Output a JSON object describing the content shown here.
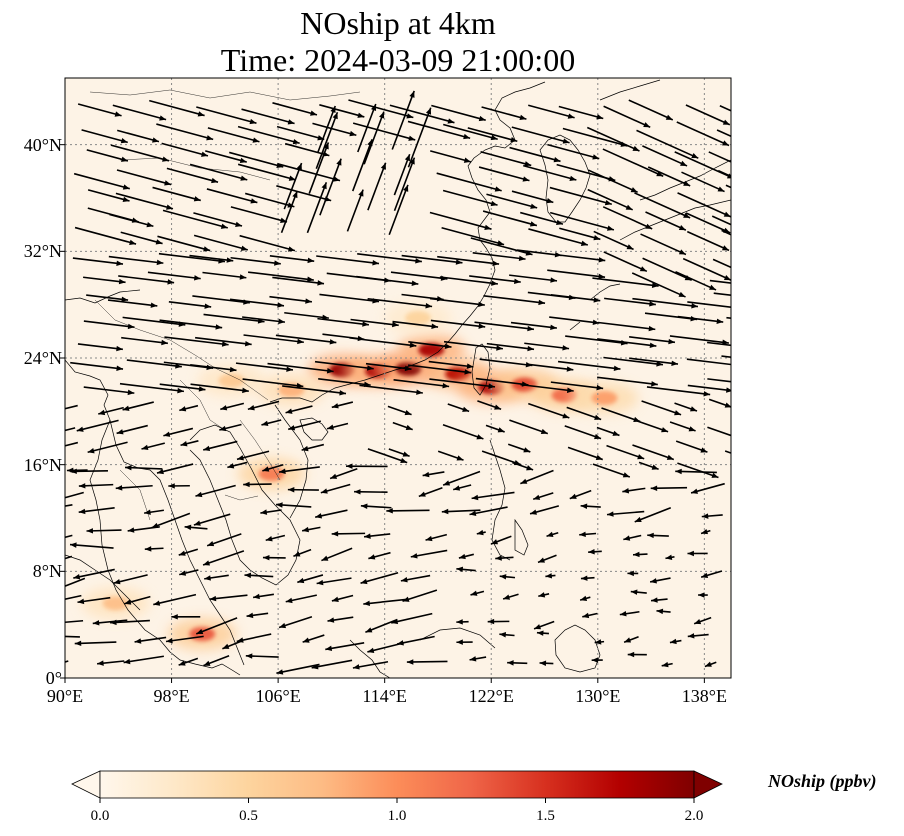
{
  "figure": {
    "title_line1": "NOship at 4km",
    "title_line2": "Time: 2024-03-09 21:00:00"
  },
  "map": {
    "lon_range": [
      90,
      140
    ],
    "lat_range": [
      0,
      45
    ],
    "x_ticks": [
      {
        "value": 90,
        "label": "90°E"
      },
      {
        "value": 98,
        "label": "98°E"
      },
      {
        "value": 106,
        "label": "106°E"
      },
      {
        "value": 114,
        "label": "114°E"
      },
      {
        "value": 122,
        "label": "122°E"
      },
      {
        "value": 130,
        "label": "130°E"
      },
      {
        "value": 138,
        "label": "138°E"
      }
    ],
    "y_ticks": [
      {
        "value": 0,
        "label": "0°"
      },
      {
        "value": 8,
        "label": "8°N"
      },
      {
        "value": 16,
        "label": "16°N"
      },
      {
        "value": 24,
        "label": "24°N"
      },
      {
        "value": 32,
        "label": "32°N"
      },
      {
        "value": 40,
        "label": "40°N"
      }
    ],
    "gridlines": true,
    "plumes": [
      {
        "lon": 110.8,
        "lat": 23.1,
        "value": 1.9
      },
      {
        "lon": 113.5,
        "lat": 23.0,
        "value": 1.8
      },
      {
        "lon": 115.8,
        "lat": 23.2,
        "value": 2.0
      },
      {
        "lon": 117.5,
        "lat": 24.6,
        "value": 1.8
      },
      {
        "lon": 119.5,
        "lat": 22.8,
        "value": 1.7
      },
      {
        "lon": 122.0,
        "lat": 21.8,
        "value": 1.8
      },
      {
        "lon": 124.5,
        "lat": 22.0,
        "value": 1.4
      },
      {
        "lon": 127.5,
        "lat": 21.2,
        "value": 1.2
      },
      {
        "lon": 130.5,
        "lat": 21.0,
        "value": 0.9
      },
      {
        "lon": 107.0,
        "lat": 21.6,
        "value": 0.8
      },
      {
        "lon": 105.5,
        "lat": 15.3,
        "value": 1.1
      },
      {
        "lon": 100.3,
        "lat": 3.3,
        "value": 1.3
      },
      {
        "lon": 93.8,
        "lat": 5.6,
        "value": 0.7
      },
      {
        "lon": 102.5,
        "lat": 22.3,
        "value": 0.6
      },
      {
        "lon": 116.5,
        "lat": 27.0,
        "value": 0.5
      }
    ],
    "wind_vectors_description": "westerly flow north of ~20°N, easterly/northeasterly flow over the South China Sea and Indochina"
  },
  "colorbar": {
    "label": "NOship (ppbv)",
    "min": 0.0,
    "max": 2.0,
    "extend": "both",
    "colormap": "OrRd",
    "stops": [
      "#fff7ec",
      "#fee8c8",
      "#fdd49e",
      "#fdbb84",
      "#fc8d59",
      "#ef6548",
      "#d7301f",
      "#b30000",
      "#7f0000"
    ],
    "ticks": [
      {
        "value": 0.0,
        "label": "0.0"
      },
      {
        "value": 0.5,
        "label": "0.5"
      },
      {
        "value": 1.0,
        "label": "1.0"
      },
      {
        "value": 1.5,
        "label": "1.5"
      },
      {
        "value": 2.0,
        "label": "2.0"
      }
    ]
  }
}
